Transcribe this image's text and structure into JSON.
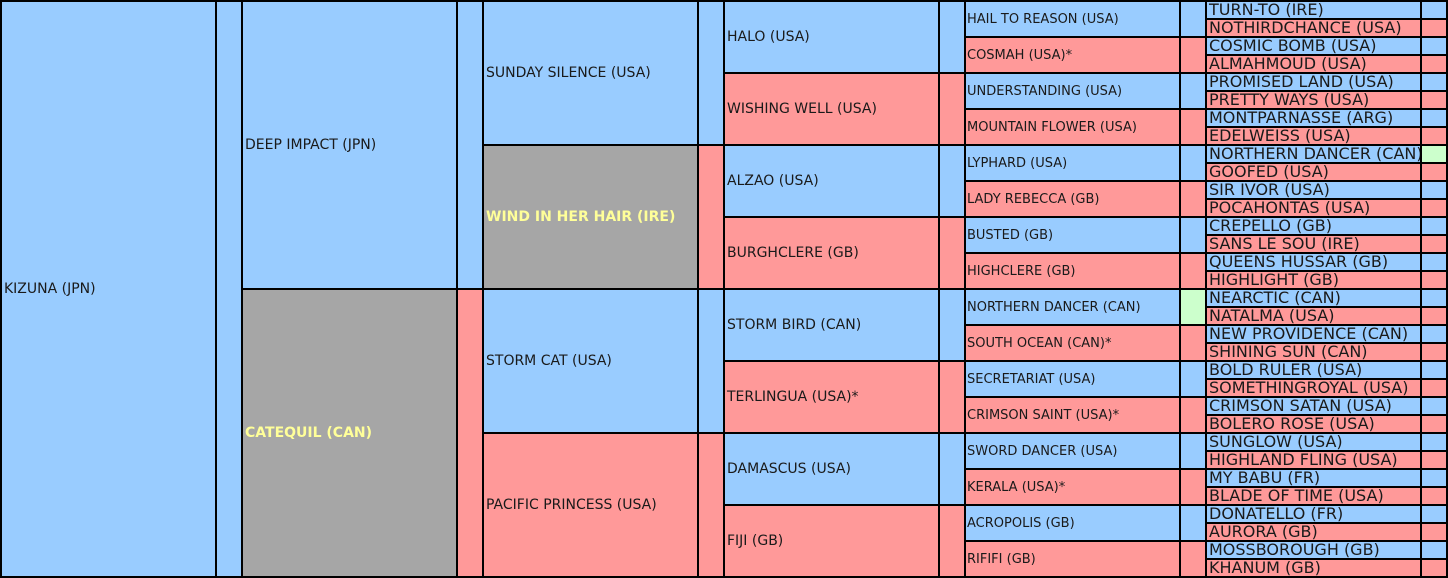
{
  "generations": {
    "g1": [
      {
        "name": "KIZUNA (JPN)",
        "type": "sire"
      }
    ],
    "g2": [
      {
        "name": "DEEP IMPACT (JPN)",
        "type": "sire"
      },
      {
        "name": "CATEQUIL (CAN)",
        "type": "grey"
      }
    ],
    "g3": [
      {
        "name": "SUNDAY SILENCE (USA)",
        "type": "sire"
      },
      {
        "name": "WIND IN HER HAIR (IRE)",
        "type": "grey"
      },
      {
        "name": "STORM CAT (USA)",
        "type": "sire"
      },
      {
        "name": "PACIFIC PRINCESS (USA)",
        "type": "dam"
      }
    ],
    "g4": [
      {
        "name": "HALO (USA)",
        "type": "sire"
      },
      {
        "name": "WISHING WELL (USA)",
        "type": "dam"
      },
      {
        "name": "ALZAO (USA)",
        "type": "sire"
      },
      {
        "name": "BURGHCLERE (GB)",
        "type": "dam"
      },
      {
        "name": "STORM BIRD (CAN)",
        "type": "sire"
      },
      {
        "name": "TERLINGUA (USA)*",
        "type": "dam"
      },
      {
        "name": "DAMASCUS (USA)",
        "type": "sire"
      },
      {
        "name": "FIJI (GB)",
        "type": "dam"
      }
    ],
    "g5": [
      {
        "name": "HAIL TO REASON (USA)",
        "type": "sire"
      },
      {
        "name": "COSMAH (USA)*",
        "type": "dam"
      },
      {
        "name": "UNDERSTANDING (USA)",
        "type": "sire"
      },
      {
        "name": "MOUNTAIN FLOWER (USA)",
        "type": "dam"
      },
      {
        "name": "LYPHARD (USA)",
        "type": "sire"
      },
      {
        "name": "LADY REBECCA (GB)",
        "type": "dam"
      },
      {
        "name": "BUSTED (GB)",
        "type": "sire"
      },
      {
        "name": "HIGHCLERE (GB)",
        "type": "dam"
      },
      {
        "name": "NORTHERN DANCER (CAN)",
        "type": "sire"
      },
      {
        "name": "SOUTH OCEAN (CAN)*",
        "type": "dam"
      },
      {
        "name": "SECRETARIAT (USA)",
        "type": "sire"
      },
      {
        "name": "CRIMSON SAINT (USA)*",
        "type": "dam"
      },
      {
        "name": "SWORD DANCER (USA)",
        "type": "sire"
      },
      {
        "name": "KERALA (USA)*",
        "type": "dam"
      },
      {
        "name": "ACROPOLIS (GB)",
        "type": "sire"
      },
      {
        "name": "RIFIFI (GB)",
        "type": "dam"
      }
    ],
    "g6": [
      {
        "name": "TURN-TO (IRE)",
        "type": "sire"
      },
      {
        "name": "NOTHIRDCHANCE (USA)",
        "type": "dam"
      },
      {
        "name": "COSMIC BOMB (USA)",
        "type": "sire"
      },
      {
        "name": "ALMAHMOUD (USA)",
        "type": "dam"
      },
      {
        "name": "PROMISED LAND (USA)",
        "type": "sire"
      },
      {
        "name": "PRETTY WAYS (USA)",
        "type": "dam"
      },
      {
        "name": "MONTPARNASSE (ARG)",
        "type": "sire"
      },
      {
        "name": "EDELWEISS (USA)",
        "type": "dam"
      },
      {
        "name": "NORTHERN DANCER (CAN)",
        "type": "sire"
      },
      {
        "name": "GOOFED (USA)",
        "type": "dam"
      },
      {
        "name": "SIR IVOR (USA)",
        "type": "sire"
      },
      {
        "name": "POCAHONTAS (USA)",
        "type": "dam"
      },
      {
        "name": "CREPELLO (GB)",
        "type": "sire"
      },
      {
        "name": "SANS LE SOU (IRE)",
        "type": "dam"
      },
      {
        "name": "QUEENS HUSSAR (GB)",
        "type": "sire"
      },
      {
        "name": "HIGHLIGHT (GB)",
        "type": "dam"
      },
      {
        "name": "NEARCTIC (CAN)",
        "type": "sire"
      },
      {
        "name": "NATALMA (USA)",
        "type": "dam"
      },
      {
        "name": "NEW PROVIDENCE (CAN)",
        "type": "sire"
      },
      {
        "name": "SHINING SUN (CAN)",
        "type": "dam"
      },
      {
        "name": "BOLD RULER (USA)",
        "type": "sire"
      },
      {
        "name": "SOMETHINGROYAL (USA)",
        "type": "dam"
      },
      {
        "name": "CRIMSON SATAN (USA)",
        "type": "sire"
      },
      {
        "name": "BOLERO ROSE (USA)",
        "type": "dam"
      },
      {
        "name": "SUNGLOW (USA)",
        "type": "sire"
      },
      {
        "name": "HIGHLAND FLING (USA)",
        "type": "dam"
      },
      {
        "name": "MY BABU (FR)",
        "type": "sire"
      },
      {
        "name": "BLADE OF TIME (USA)",
        "type": "dam"
      },
      {
        "name": "DONATELLO (FR)",
        "type": "sire"
      },
      {
        "name": "AURORA (GB)",
        "type": "dam"
      },
      {
        "name": "MOSSBOROUGH (GB)",
        "type": "sire"
      },
      {
        "name": "KHANUM (GB)",
        "type": "dam"
      }
    ]
  },
  "inbreeding_marks": [
    {
      "generation": "g5",
      "index": 8
    },
    {
      "generation": "g6",
      "index": 8
    }
  ],
  "colors": {
    "sire": "#99ccff",
    "dam": "#ff9999",
    "grey": "#a6a6a6",
    "inbred": "#ccffcc",
    "highlight_text": "#ffff99",
    "grid": "#000000"
  }
}
